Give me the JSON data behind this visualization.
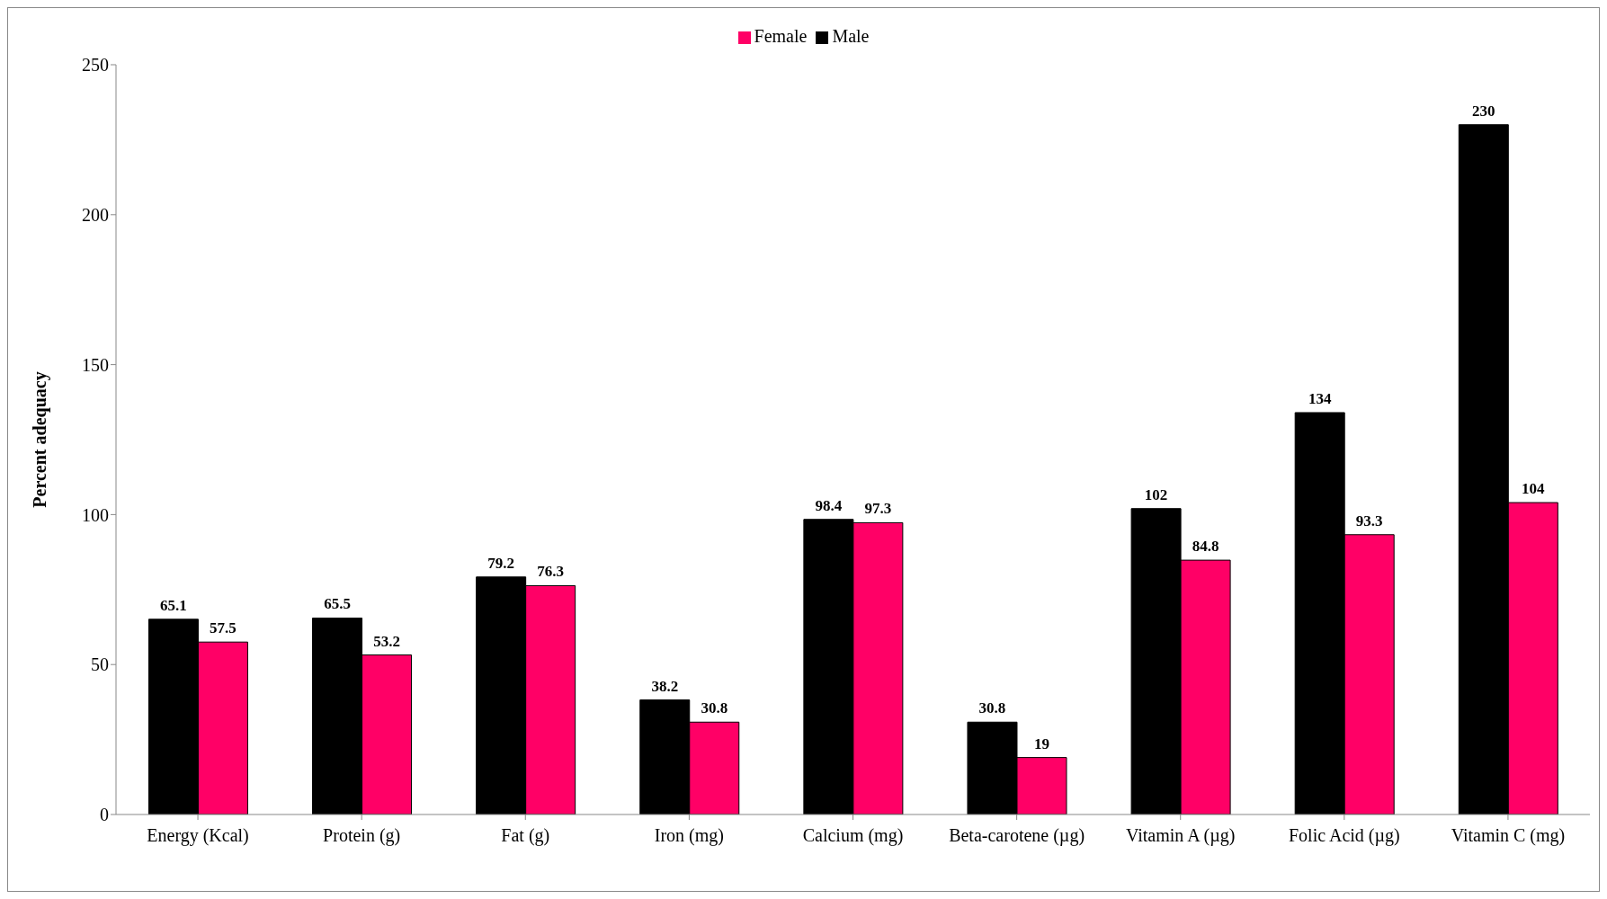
{
  "chart_data": {
    "type": "bar",
    "ylabel": "Percent adequacy",
    "categories": [
      "Energy (Kcal)",
      "Protein (g)",
      "Fat (g)",
      "Iron (mg)",
      "Calcium (mg)",
      "Beta-carotene (µg)",
      "Vitamin A (µg)",
      "Folic Acid (µg)",
      "Vitamin C (mg)"
    ],
    "series": [
      {
        "name": "Male",
        "color": "#000000",
        "values": [
          65.1,
          65.5,
          79.2,
          38.2,
          98.4,
          30.8,
          102,
          134,
          230
        ]
      },
      {
        "name": "Female",
        "color": "#ff0066",
        "values": [
          57.5,
          53.2,
          76.3,
          30.8,
          97.3,
          19,
          84.8,
          93.3,
          104
        ]
      }
    ],
    "ylim": [
      0,
      250
    ],
    "yticks": [
      0,
      50,
      100,
      150,
      200,
      250
    ],
    "grid": false,
    "legend": "top",
    "data_labels": true
  }
}
